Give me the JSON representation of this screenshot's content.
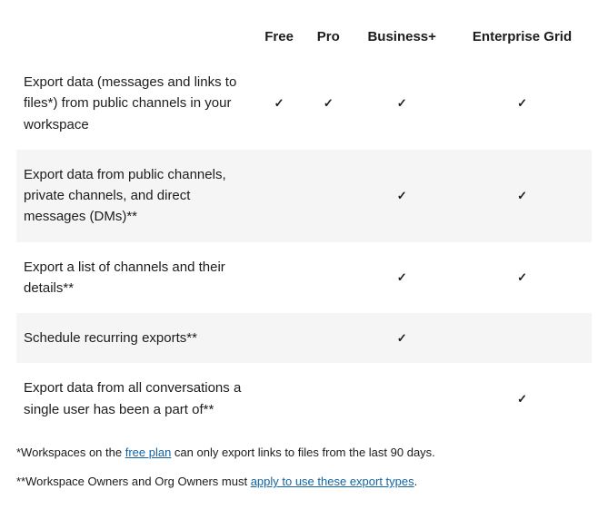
{
  "table": {
    "columns": [
      "Free",
      "Pro",
      "Business+",
      "Enterprise Grid"
    ],
    "check_mark": "✓",
    "alt_row_bg": "#f5f5f5",
    "rows": [
      {
        "feature": "Export data (messages and links to files*) from public channels in your workspace",
        "values": [
          true,
          true,
          true,
          true
        ],
        "alt": false
      },
      {
        "feature": "Export data from public channels, private channels, and direct messages (DMs)**",
        "values": [
          false,
          false,
          true,
          true
        ],
        "alt": true
      },
      {
        "feature": "Export a list of channels and their details**",
        "values": [
          false,
          false,
          true,
          true
        ],
        "alt": false
      },
      {
        "feature": "Schedule recurring exports**",
        "values": [
          false,
          false,
          true,
          false
        ],
        "alt": true
      },
      {
        "feature": "Export data from all conversations a single user has been a part of**",
        "values": [
          false,
          false,
          false,
          true
        ],
        "alt": false
      }
    ]
  },
  "footnotes": {
    "f1_pre": "*Workspaces on the ",
    "f1_link": "free plan",
    "f1_post": " can only export links to files from the last 90 days.",
    "f2_pre": "**Workspace Owners and Org Owners must ",
    "f2_link": "apply to use these export types",
    "f2_post": "."
  },
  "colors": {
    "link": "#1264a3",
    "text": "#1d1c1d",
    "background": "#ffffff"
  }
}
